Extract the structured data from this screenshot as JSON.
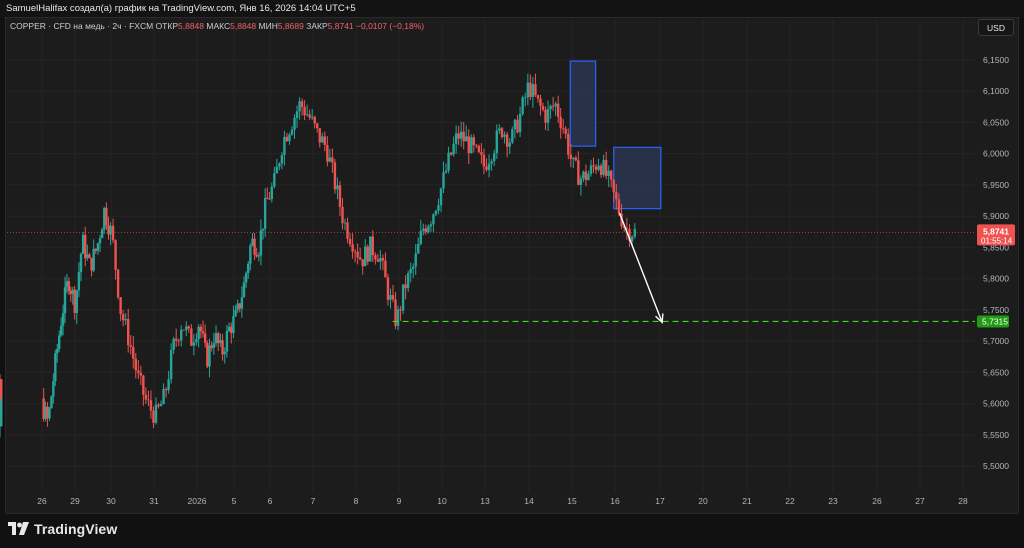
{
  "header": {
    "credit": "SamuelHalifax создал(а) график на TradingView.com, Янв 16, 2026 14:04 UTC+5"
  },
  "legend": {
    "symbol": "COPPER · CFD на медь · 2ч · FXCM",
    "open_label": "ОТКР",
    "open_value": "5,8848",
    "high_label": "МАКС",
    "high_value": "5,8848",
    "low_label": "МИН",
    "low_value": "5,8689",
    "close_label": "ЗАКР",
    "close_value": "5,8741",
    "change": "−0,0107 (−0,18%)"
  },
  "currency_button": "USD",
  "footer": {
    "logo_text": "TradingView"
  },
  "colors": {
    "up": "#26a69a",
    "down": "#ef5350",
    "price_line": "#ef5350",
    "target_line": "#3ddc1f",
    "box_stroke": "#2962ff",
    "box_fill": "#2c3550",
    "arrow": "#ffffff",
    "grid": "#242424"
  },
  "chart_data": {
    "type": "candlestick",
    "symbol": "COPPER",
    "timeframe": "2ч",
    "y_range": [
      5.465,
      6.185
    ],
    "y_ticks": [
      "6,1500",
      "6,1000",
      "6,0500",
      "6,0000",
      "5,9500",
      "5,9000",
      "5,8500",
      "5,8000",
      "5,7500",
      "5,7000",
      "5,6500",
      "5,6000",
      "5,5500",
      "5,5000"
    ],
    "y_tick_values": [
      6.15,
      6.1,
      6.05,
      6.0,
      5.95,
      5.9,
      5.85,
      5.8,
      5.75,
      5.7,
      5.65,
      5.6,
      5.55,
      5.5
    ],
    "x_labels": [
      "26",
      "29",
      "30",
      "31",
      "2026",
      "5",
      "6",
      "7",
      "8",
      "9",
      "10",
      "13",
      "14",
      "15",
      "16",
      "17",
      "20",
      "21",
      "22",
      "23",
      "26",
      "27",
      "28"
    ],
    "current_price": {
      "value": 5.8741,
      "label": "5,8741",
      "countdown": "01:55:14"
    },
    "target": {
      "value": 5.7315,
      "label": "5,7315",
      "style": "dashed"
    },
    "price_path": [
      [
        0,
        5.58
      ],
      [
        1,
        5.62
      ],
      [
        2,
        5.56
      ],
      [
        3,
        5.64
      ],
      [
        4,
        5.6
      ],
      [
        5,
        5.57
      ],
      [
        6,
        5.66
      ],
      [
        7,
        5.74
      ],
      [
        8,
        5.8
      ],
      [
        9,
        5.76
      ],
      [
        10,
        5.86
      ],
      [
        11,
        5.82
      ],
      [
        12,
        5.85
      ],
      [
        13,
        5.91
      ],
      [
        14,
        5.87
      ],
      [
        15,
        5.75
      ],
      [
        16,
        5.7
      ],
      [
        17,
        5.64
      ],
      [
        18,
        5.6
      ],
      [
        19,
        5.58
      ],
      [
        20,
        5.61
      ],
      [
        21,
        5.69
      ],
      [
        22,
        5.73
      ],
      [
        23,
        5.7
      ],
      [
        24,
        5.73
      ],
      [
        25,
        5.67
      ],
      [
        26,
        5.71
      ],
      [
        27,
        5.68
      ],
      [
        28,
        5.72
      ],
      [
        29,
        5.74
      ],
      [
        30,
        5.79
      ],
      [
        31,
        5.86
      ],
      [
        32,
        5.85
      ],
      [
        33,
        5.92
      ],
      [
        34,
        5.95
      ],
      [
        35,
        6.02
      ],
      [
        36,
        6.05
      ],
      [
        37,
        6.08
      ],
      [
        38,
        6.06
      ],
      [
        39,
        6.03
      ],
      [
        40,
        6.01
      ],
      [
        41,
        5.95
      ],
      [
        42,
        5.89
      ],
      [
        43,
        5.86
      ],
      [
        44,
        5.83
      ],
      [
        45,
        5.85
      ],
      [
        46,
        5.84
      ],
      [
        47,
        5.78
      ],
      [
        48,
        5.73
      ],
      [
        49,
        5.79
      ],
      [
        50,
        5.82
      ],
      [
        51,
        5.88
      ],
      [
        52,
        5.9
      ],
      [
        53,
        5.94
      ],
      [
        54,
        5.99
      ],
      [
        55,
        6.03
      ],
      [
        56,
        6.02
      ],
      [
        57,
        6.0
      ],
      [
        58,
        5.98
      ],
      [
        59,
        6.01
      ],
      [
        60,
        6.04
      ],
      [
        61,
        6.02
      ],
      [
        62,
        6.06
      ],
      [
        63,
        6.11
      ],
      [
        64,
        6.08
      ],
      [
        65,
        6.06
      ],
      [
        66,
        6.08
      ],
      [
        67,
        6.04
      ],
      [
        68,
        5.98
      ],
      [
        69,
        5.96
      ],
      [
        70,
        5.97
      ],
      [
        71,
        5.99
      ],
      [
        72,
        5.96
      ],
      [
        73,
        5.92
      ],
      [
        74,
        5.88
      ],
      [
        75,
        5.874
      ]
    ],
    "ohlc_notes": "Candle OHLC values approximated from the screenshot; 2-hour candles, Dec 26 2025 to Jan 16 2026.",
    "annotations": [
      {
        "type": "rectangle",
        "x": [
          "14",
          "15"
        ],
        "y": [
          6.012,
          6.148
        ]
      },
      {
        "type": "rectangle",
        "x": [
          "15",
          "16"
        ],
        "y": [
          5.912,
          6.01
        ]
      },
      {
        "type": "arrow",
        "from": [
          "16",
          5.905
        ],
        "to": [
          "20",
          5.73
        ]
      }
    ]
  }
}
